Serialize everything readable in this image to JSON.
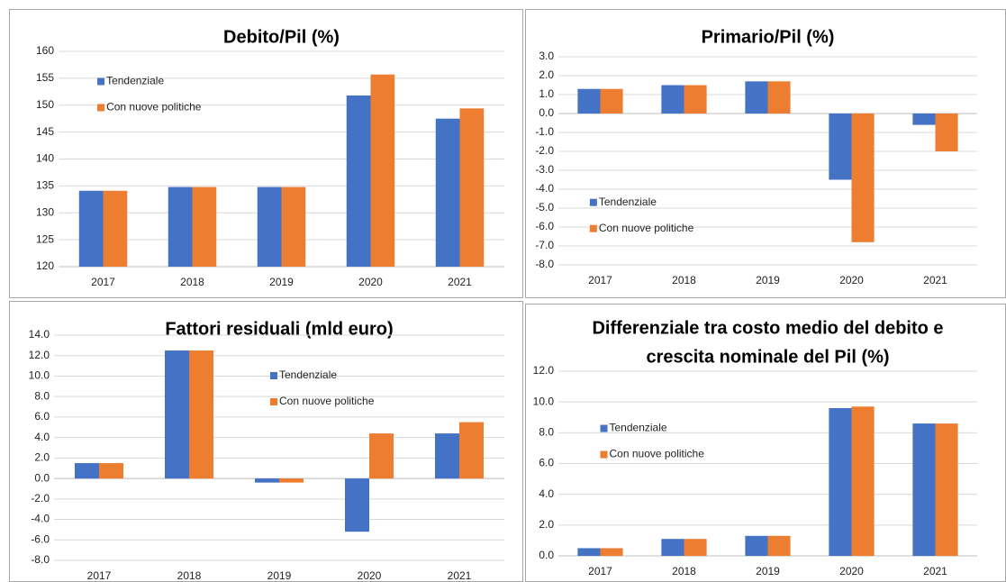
{
  "chart_data": [
    {
      "type": "bar",
      "title": [
        "Debito/Pil (%)"
      ],
      "categories": [
        "2017",
        "2018",
        "2019",
        "2020",
        "2021"
      ],
      "series": [
        {
          "name": "Tendenziale",
          "color": "#4472c4",
          "values": [
            134.1,
            134.8,
            134.8,
            151.8,
            147.5
          ]
        },
        {
          "name": "Con nuove politiche",
          "color": "#ed7d31",
          "values": [
            134.1,
            134.8,
            134.8,
            155.7,
            149.4
          ]
        }
      ],
      "ylim": [
        120,
        160
      ],
      "yticks": [
        120,
        125,
        130,
        135,
        140,
        145,
        150,
        155,
        160
      ],
      "grid": true,
      "legend": "upper left"
    },
    {
      "type": "bar",
      "title": [
        "Primario/Pil (%)"
      ],
      "categories": [
        "2017",
        "2018",
        "2019",
        "2020",
        "2021"
      ],
      "series": [
        {
          "name": "Tendenziale",
          "color": "#4472c4",
          "values": [
            1.3,
            1.5,
            1.7,
            -3.5,
            -0.6
          ]
        },
        {
          "name": "Con nuove politiche",
          "color": "#ed7d31",
          "values": [
            1.3,
            1.5,
            1.7,
            -6.8,
            -2.0
          ]
        }
      ],
      "ylim": [
        -8,
        3
      ],
      "yticks": [
        {
          "value": -8,
          "label": "-8.0"
        },
        {
          "value": -7,
          "label": "-7.0"
        },
        {
          "value": -6,
          "label": "-6.0"
        },
        {
          "value": -5,
          "label": "-5.0"
        },
        {
          "value": -4,
          "label": "-4.0"
        },
        {
          "value": -3,
          "label": "-3.0"
        },
        {
          "value": -2,
          "label": "-2.0"
        },
        {
          "value": -1,
          "label": "-1.0"
        },
        {
          "value": 0,
          "label": "0.0"
        },
        {
          "value": 1,
          "label": "1.0"
        },
        {
          "value": 2,
          "label": "2.0"
        },
        {
          "value": 3,
          "label": "3.0"
        }
      ],
      "grid": true,
      "legend": "lower left"
    },
    {
      "type": "bar",
      "title": [
        "Fattori residuali (mld euro)"
      ],
      "categories": [
        "2017",
        "2018",
        "2019",
        "2020",
        "2021"
      ],
      "series": [
        {
          "name": "Tendenziale",
          "color": "#4472c4",
          "values": [
            1.5,
            12.5,
            -0.4,
            -5.2,
            4.4
          ]
        },
        {
          "name": "Con nuove politiche",
          "color": "#ed7d31",
          "values": [
            1.5,
            12.5,
            -0.4,
            4.4,
            5.5
          ]
        }
      ],
      "ylim": [
        -8,
        14
      ],
      "yticks": [
        {
          "value": -8,
          "label": "-8.0"
        },
        {
          "value": -6,
          "label": "-6.0"
        },
        {
          "value": -4,
          "label": "-4.0"
        },
        {
          "value": -2,
          "label": "-2.0"
        },
        {
          "value": 0,
          "label": "0.0"
        },
        {
          "value": 2,
          "label": "2.0"
        },
        {
          "value": 4,
          "label": "4.0"
        },
        {
          "value": 6,
          "label": "6.0"
        },
        {
          "value": 8,
          "label": "8.0"
        },
        {
          "value": 10,
          "label": "10.0"
        },
        {
          "value": 12,
          "label": "12.0"
        },
        {
          "value": 14,
          "label": "14.0"
        }
      ],
      "grid": true,
      "legend": "upper center"
    },
    {
      "type": "bar",
      "title": [
        "Differenziale tra costo medio del debito e",
        "crescita nominale del Pil (%)"
      ],
      "categories": [
        "2017",
        "2018",
        "2019",
        "2020",
        "2021"
      ],
      "series": [
        {
          "name": "Tendenziale",
          "color": "#4472c4",
          "values": [
            0.5,
            1.1,
            1.3,
            9.6,
            8.6
          ]
        },
        {
          "name": "Con nuove politiche",
          "color": "#ed7d31",
          "values": [
            0.5,
            1.1,
            1.3,
            9.7,
            8.6
          ]
        }
      ],
      "ylim": [
        0,
        12
      ],
      "yticks": [
        {
          "value": 0,
          "label": "0.0"
        },
        {
          "value": 2,
          "label": "2.0"
        },
        {
          "value": 4,
          "label": "4.0"
        },
        {
          "value": 6,
          "label": "6.0"
        },
        {
          "value": 8,
          "label": "8.0"
        },
        {
          "value": 10,
          "label": "10.0"
        },
        {
          "value": 12,
          "label": "12.0"
        }
      ],
      "grid": true,
      "legend": "center left"
    }
  ]
}
